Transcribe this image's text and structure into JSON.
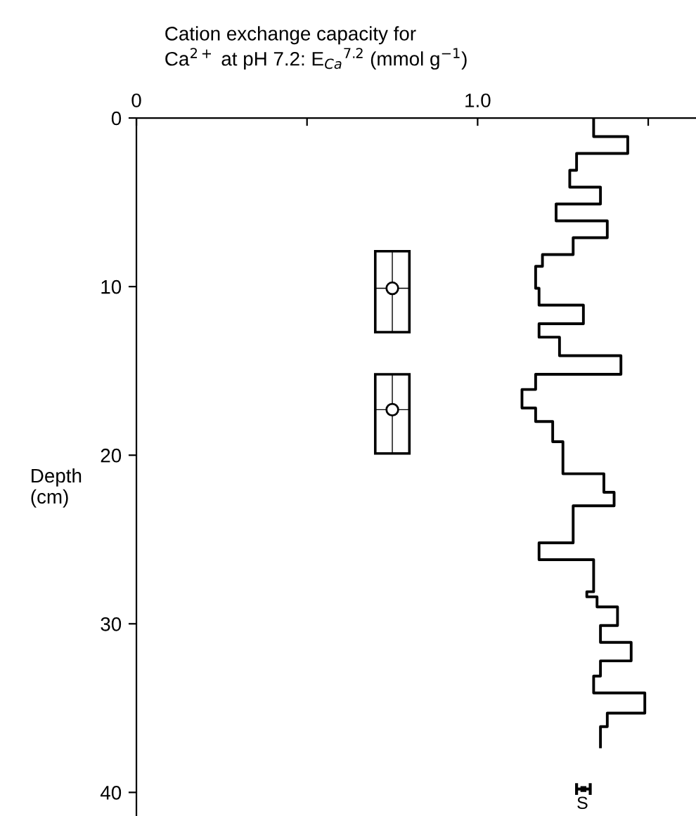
{
  "chart_data": {
    "type": "step",
    "orientation": "horizontal",
    "xlabel": "Cation exchange capacity for\nCa$^{2+}$ at pH 7.2: E$_{Ca}$$^{7.2}$ (mmol g$^{−1}$)",
    "ylabel": "Depth\n(cm)",
    "xlim": [
      0,
      1.64
    ],
    "xticks": [
      0,
      {
        "value": 0.5,
        "label": null
      },
      {
        "value": 1.0,
        "label": "1.0"
      },
      {
        "value": 1.5,
        "label": null
      }
    ],
    "ylim": [
      41.4,
      0
    ],
    "yticks": [
      0,
      10,
      20,
      30,
      40
    ],
    "grid": false,
    "legend": false,
    "series": [
      {
        "color": "#000000",
        "marker": "none",
        "x": [
          0,
          1.1,
          2.1,
          3.1,
          4.1,
          5.1,
          6.1,
          7.1,
          8.1,
          8.8,
          10.1,
          11.1,
          12.2,
          13.0,
          14.1,
          15.2,
          16.1,
          17.2,
          18.0,
          19.2,
          21.1,
          22.2,
          23.0,
          25.2,
          26.2,
          28.1,
          28.4,
          29.0,
          30.1,
          31.1,
          32.2,
          33.1,
          34.1,
          35.3,
          36.1,
          37.3
        ],
        "values": [
          1.34,
          1.44,
          1.29,
          1.27,
          1.36,
          1.23,
          1.38,
          1.28,
          1.19,
          1.17,
          1.18,
          1.31,
          1.18,
          1.24,
          1.42,
          1.17,
          1.13,
          1.17,
          1.22,
          1.25,
          1.37,
          1.4,
          1.28,
          1.18,
          1.34,
          1.32,
          1.35,
          1.41,
          1.36,
          1.45,
          1.36,
          1.34,
          1.49,
          1.38,
          1.36,
          1.36
        ]
      },
      {
        "type": "scatter",
        "color": "#000000",
        "marker": "circle",
        "x": [
          10.1,
          17.3
        ],
        "values": [
          0.75,
          0.75
        ],
        "errors": [
          [
            0.7,
            0.8
          ],
          [
            0.7,
            0.8
          ]
        ],
        "xerrors": [
          [
            7.9,
            12.7
          ],
          [
            15.2,
            19.9
          ]
        ]
      },
      {
        "type": "scatter",
        "color": "#000000",
        "marker": "square",
        "x": [
          39.8
        ],
        "values": [
          1.31
        ],
        "errors": [
          0.02
        ]
      }
    ],
    "annotations": [
      "S"
    ]
  }
}
